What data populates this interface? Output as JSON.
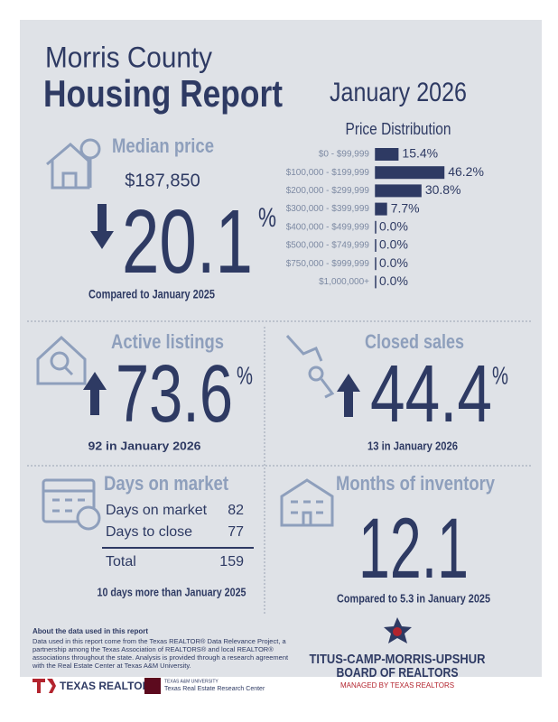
{
  "header": {
    "county": "Morris County",
    "title": "Housing Report",
    "month": "January 2026"
  },
  "median_price": {
    "label": "Median price",
    "price": "$187,850",
    "change": "20.1",
    "unit": "%",
    "comparison": "Compared to January 2025"
  },
  "price_distribution": {
    "type": "bar",
    "title": "Price Distribution",
    "categories": [
      "$0 - $99,999",
      "$100,000 - $199,999",
      "$200,000 - $299,999",
      "$300,000 - $399,999",
      "$400,000 - $499,999",
      "$500,000 - $749,999",
      "$750,000 - $999,999",
      "$1,000,000+"
    ],
    "values": [
      15.4,
      46.2,
      30.8,
      7.7,
      0,
      0,
      0,
      0
    ],
    "value_labels": [
      "15.4%",
      "46.2%",
      "30.8%",
      "7.7%",
      "0.0%",
      "0.0%",
      "0.0%",
      "0.0%"
    ],
    "color": "#2e3a63"
  },
  "active_listings": {
    "label": "Active listings",
    "change": "73.6",
    "unit": "%",
    "note": "92 in January 2026"
  },
  "closed_sales": {
    "label": "Closed sales",
    "change": "44.4",
    "unit": "%",
    "note": "13 in January 2026"
  },
  "days_on_market": {
    "label": "Days on market",
    "rows": [
      [
        "Days on market",
        "82"
      ],
      [
        "Days to close",
        "77"
      ]
    ],
    "total": [
      "Total",
      "159"
    ],
    "note": "10 days more than January 2025"
  },
  "months_inventory": {
    "label": "Months of inventory",
    "value": "12.1",
    "note": "Compared to 5.3 in January 2025"
  },
  "footer": {
    "about_title": "About the data used in this report",
    "about_lines": [
      "Data used in this report come from the Texas REALTOR® Data Relevance Project, a",
      "partnership among the Texas Association of REALTORS® and local REALTOR®",
      "associations throughout the state. Analysis is provided through a research agreement",
      "with the Real Estate Center at Texas A&M University."
    ],
    "texas_realtors": "TEXAS REALTORS",
    "am_university": "TEXAS A&M UNIVERSITY",
    "am_center": "Texas Real Estate Research Center",
    "board_line1": "TITUS-CAMP-MORRIS-UPSHUR",
    "board_line2": "BOARD OF REALTORS",
    "managed": "MANAGED BY TEXAS REALTORS"
  }
}
